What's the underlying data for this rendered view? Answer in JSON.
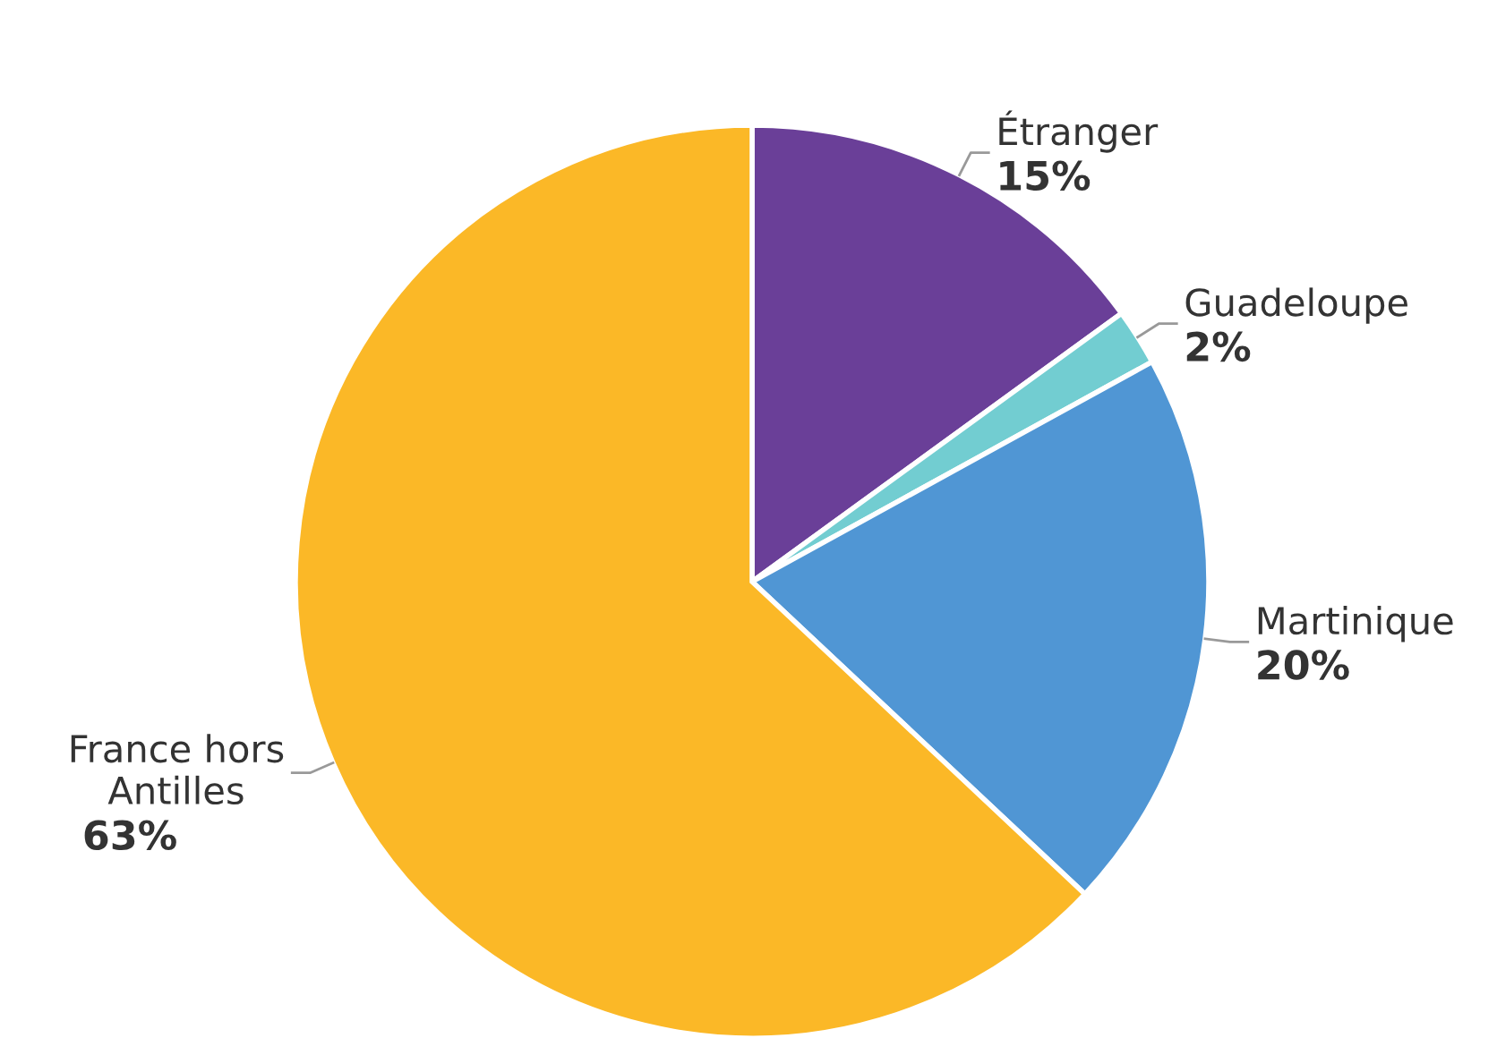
{
  "chart_data": {
    "type": "pie",
    "categories": [
      "Étranger",
      "Guadeloupe",
      "Martinique",
      "France hors\nAntilles"
    ],
    "values": [
      15,
      2,
      20,
      63
    ],
    "colors": [
      "#6a3f98",
      "#72cdd1",
      "#5096d4",
      "#fbb827"
    ],
    "value_labels": [
      "15%",
      "2%",
      "20%",
      "63%"
    ]
  }
}
